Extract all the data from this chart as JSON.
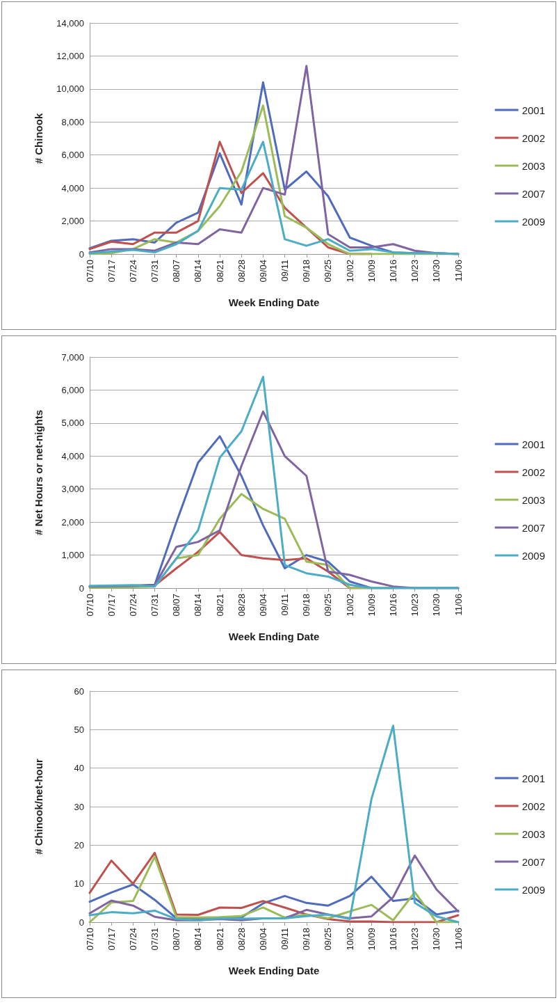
{
  "chart_data": [
    {
      "type": "line",
      "xlabel": "Week Ending Date",
      "ylabel": "# Chinook",
      "categories": [
        "07/10",
        "07/17",
        "07/24",
        "07/31",
        "08/07",
        "08/14",
        "08/21",
        "08/28",
        "09/04",
        "09/11",
        "09/18",
        "09/25",
        "10/02",
        "10/09",
        "10/16",
        "10/23",
        "10/30",
        "11/06"
      ],
      "series": [
        {
          "name": "2001",
          "color": "#4f6bbd",
          "values": [
            350,
            800,
            900,
            700,
            1900,
            2500,
            6100,
            3000,
            10400,
            3900,
            5000,
            3500,
            1000,
            500,
            100,
            50,
            50,
            0
          ]
        },
        {
          "name": "2002",
          "color": "#c0504d",
          "values": [
            300,
            750,
            600,
            1300,
            1300,
            2000,
            6800,
            3700,
            4900,
            2800,
            1600,
            400,
            0,
            0,
            null,
            null,
            null,
            null
          ]
        },
        {
          "name": "2003",
          "color": "#9bbb59",
          "values": [
            0,
            50,
            300,
            900,
            700,
            1400,
            2900,
            5000,
            9000,
            2300,
            1600,
            600,
            0,
            0,
            0,
            0,
            0,
            0
          ]
        },
        {
          "name": "2007",
          "color": "#8064a2",
          "values": [
            100,
            300,
            300,
            200,
            700,
            600,
            1500,
            1300,
            4000,
            3600,
            11400,
            1200,
            400,
            400,
            600,
            200,
            50,
            0
          ]
        },
        {
          "name": "2009",
          "color": "#4bacc6",
          "values": [
            50,
            150,
            250,
            100,
            600,
            1400,
            4000,
            3900,
            6800,
            900,
            500,
            900,
            200,
            300,
            100,
            50,
            50,
            0
          ]
        }
      ],
      "ylim": [
        0,
        14000
      ],
      "yticks": [
        0,
        {
          "value": 2000,
          "label": "2,000"
        },
        {
          "value": 4000,
          "label": "4,000"
        },
        {
          "value": 6000,
          "label": "6,000"
        },
        {
          "value": 8000,
          "label": "8,000"
        },
        {
          "value": 10000,
          "label": "10,000"
        },
        {
          "value": 12000,
          "label": "12,000"
        },
        {
          "value": 14000,
          "label": "14,000"
        }
      ],
      "grid": "y",
      "legend": "right",
      "marker": "none",
      "line_style": "solid"
    },
    {
      "type": "line",
      "xlabel": "Week Ending Date",
      "ylabel": "# Net Hours or net-nights",
      "categories": [
        "07/10",
        "07/17",
        "07/24",
        "07/31",
        "08/07",
        "08/14",
        "08/21",
        "08/28",
        "09/04",
        "09/11",
        "09/18",
        "09/25",
        "10/02",
        "10/09",
        "10/16",
        "10/23",
        "10/30",
        "11/06"
      ],
      "series": [
        {
          "name": "2001",
          "color": "#4f6bbd",
          "values": [
            50,
            60,
            80,
            100,
            2000,
            3800,
            4600,
            3400,
            1900,
            600,
            1000,
            800,
            200,
            0,
            0,
            0,
            0,
            0
          ]
        },
        {
          "name": "2002",
          "color": "#c0504d",
          "values": [
            null,
            null,
            50,
            80,
            600,
            1100,
            1700,
            1000,
            900,
            850,
            900,
            500,
            0,
            0,
            null,
            null,
            null,
            null
          ]
        },
        {
          "name": "2003",
          "color": "#9bbb59",
          "values": [
            10,
            20,
            30,
            50,
            900,
            1000,
            2100,
            2850,
            2400,
            2100,
            800,
            700,
            0,
            0,
            0,
            null,
            null,
            null
          ]
        },
        {
          "name": "2007",
          "color": "#8064a2",
          "values": [
            50,
            60,
            70,
            80,
            1250,
            1400,
            1750,
            3700,
            5350,
            4000,
            3400,
            500,
            400,
            200,
            50,
            0,
            0,
            0
          ]
        },
        {
          "name": "2009",
          "color": "#4bacc6",
          "values": [
            70,
            80,
            90,
            50,
            900,
            1750,
            3950,
            4750,
            6400,
            700,
            450,
            350,
            100,
            0,
            0,
            0,
            0,
            0
          ]
        }
      ],
      "ylim": [
        0,
        7000
      ],
      "yticks": [
        0,
        {
          "value": 1000,
          "label": "1,000"
        },
        {
          "value": 2000,
          "label": "2,000"
        },
        {
          "value": 3000,
          "label": "3,000"
        },
        {
          "value": 4000,
          "label": "4,000"
        },
        {
          "value": 5000,
          "label": "5,000"
        },
        {
          "value": 6000,
          "label": "6,000"
        },
        {
          "value": 7000,
          "label": "7,000"
        }
      ],
      "grid": "y",
      "legend": "right",
      "marker": "none",
      "line_style": "solid"
    },
    {
      "type": "line",
      "xlabel": "Week Ending Date",
      "ylabel": "# Chinook/net-hour",
      "categories": [
        "07/10",
        "07/17",
        "07/24",
        "07/31",
        "08/07",
        "08/14",
        "08/21",
        "08/28",
        "09/04",
        "09/11",
        "09/18",
        "09/25",
        "10/02",
        "10/09",
        "10/16",
        "10/23",
        "10/30",
        "11/06"
      ],
      "series": [
        {
          "name": "2001",
          "color": "#4f6bbd",
          "values": [
            5.3,
            7.7,
            9.8,
            5.8,
            1,
            0.8,
            1,
            1.2,
            4.9,
            6.8,
            5,
            4.3,
            6.8,
            11.8,
            5.5,
            6.2,
            2,
            3
          ]
        },
        {
          "name": "2002",
          "color": "#c0504d",
          "values": [
            7.6,
            16,
            10,
            18,
            2,
            1.9,
            3.8,
            3.7,
            5.5,
            3.8,
            2,
            0.8,
            0.2,
            0.2,
            0,
            0,
            0,
            1.8
          ]
        },
        {
          "name": "2003",
          "color": "#9bbb59",
          "values": [
            0,
            5.1,
            5.5,
            17,
            1.3,
            1.2,
            1.3,
            1.6,
            3.8,
            1.2,
            2,
            1,
            2.8,
            4.5,
            0.5,
            7.8,
            0,
            0
          ]
        },
        {
          "name": "2007",
          "color": "#8064a2",
          "values": [
            2.3,
            5.6,
            4.3,
            1.4,
            0.5,
            0.5,
            0.8,
            0.5,
            1,
            1,
            3.2,
            2,
            1,
            1.5,
            6.5,
            17.3,
            8.5,
            2.8
          ]
        },
        {
          "name": "2009",
          "color": "#4bacc6",
          "values": [
            1.8,
            2.6,
            2.3,
            3,
            0.8,
            0.5,
            1,
            0.9,
            1,
            1,
            1.6,
            2,
            0.8,
            32,
            51,
            5,
            1.5,
            0
          ]
        }
      ],
      "ylim": [
        0,
        60
      ],
      "yticks": [
        0,
        10,
        20,
        30,
        40,
        50,
        60
      ],
      "grid": "y",
      "legend": "right",
      "marker": "none",
      "line_style": "solid"
    }
  ]
}
